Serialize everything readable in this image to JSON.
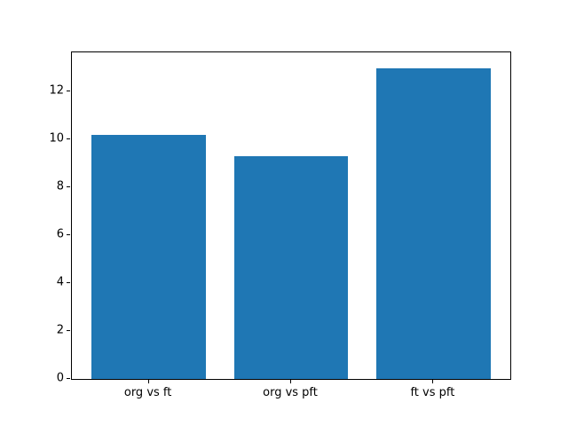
{
  "chart_data": {
    "type": "bar",
    "categories": [
      "org vs ft",
      "org vs pft",
      "ft vs pft"
    ],
    "values": [
      10.2,
      9.3,
      13.0
    ],
    "title": "",
    "xlabel": "",
    "ylabel": "",
    "ylim": [
      0,
      13.65
    ],
    "xlim": [
      -0.54,
      2.54
    ],
    "bar_width": 0.8,
    "yticks": [
      0,
      2,
      4,
      6,
      8,
      10,
      12
    ],
    "grid": false,
    "legend": null,
    "bar_color": "#1f77b4"
  },
  "colors": {
    "bar": "#1f77b4",
    "axis": "#000000",
    "background": "#ffffff"
  }
}
